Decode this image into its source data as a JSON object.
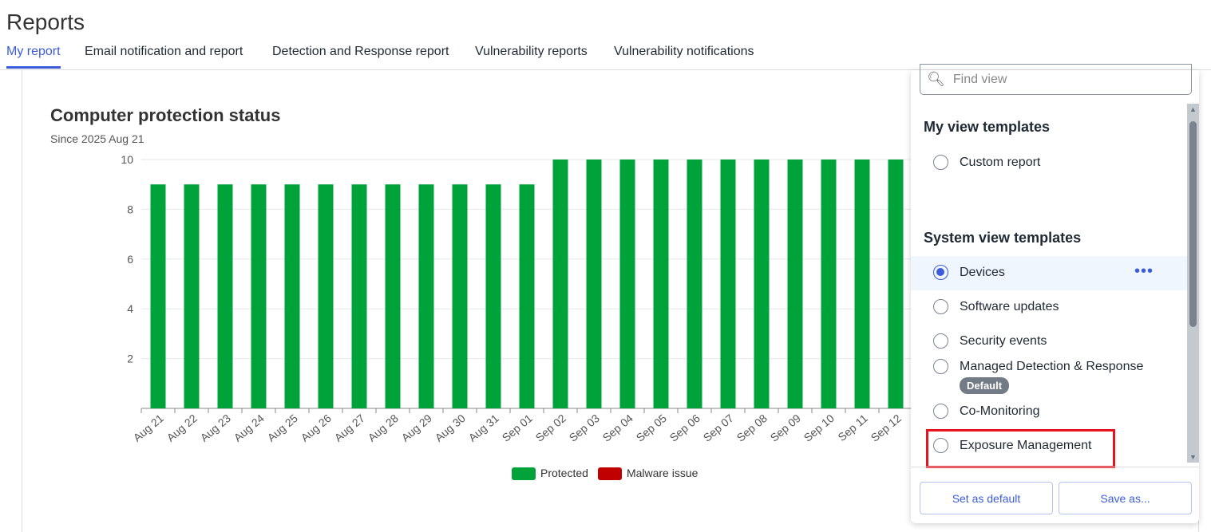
{
  "page": {
    "title": "Reports"
  },
  "tabs": [
    {
      "label": "My report",
      "active": true
    },
    {
      "label": "Email notification and report"
    },
    {
      "label": "Detection and Response report"
    },
    {
      "label": "Vulnerability reports"
    },
    {
      "label": "Vulnerability notifications"
    }
  ],
  "report": {
    "title": "Computer protection status",
    "subtitle": "Since 2025 Aug 21"
  },
  "chart_data": {
    "type": "bar",
    "stacked": true,
    "categories": [
      "Aug 21",
      "Aug 22",
      "Aug 23",
      "Aug 24",
      "Aug 25",
      "Aug 26",
      "Aug 27",
      "Aug 28",
      "Aug 29",
      "Aug 30",
      "Aug 31",
      "Sep 01",
      "Sep 02",
      "Sep 03",
      "Sep 04",
      "Sep 05",
      "Sep 06",
      "Sep 07",
      "Sep 08",
      "Sep 09",
      "Sep 10",
      "Sep 11",
      "Sep 12"
    ],
    "series": [
      {
        "name": "Protected",
        "color": "#00a33a",
        "values": [
          9,
          9,
          9,
          9,
          9,
          9,
          9,
          9,
          9,
          9,
          9,
          9,
          10,
          10,
          10,
          10,
          10,
          10,
          10,
          10,
          10,
          10,
          10
        ]
      },
      {
        "name": "Malware issue",
        "color": "#c00000",
        "values": [
          0,
          0,
          0,
          0,
          0,
          0,
          0,
          0,
          0,
          0,
          0,
          0,
          0,
          0,
          0,
          0,
          0,
          0,
          0,
          0,
          0,
          0,
          0
        ]
      }
    ],
    "ylim": [
      0,
      10
    ],
    "yticks": [
      "2",
      "4",
      "6",
      "8",
      "10"
    ],
    "grid": true,
    "legend": "bottom"
  },
  "panel": {
    "search_placeholder": "Find view",
    "my_section": "My view templates",
    "my_items": [
      {
        "label": "Custom report"
      }
    ],
    "system_section": "System view templates",
    "system_items": [
      {
        "label": "Devices",
        "selected": true
      },
      {
        "label": "Software updates"
      },
      {
        "label": "Security events"
      },
      {
        "label": "Managed Detection & Response",
        "badge": "Default"
      },
      {
        "label": "Co-Monitoring"
      },
      {
        "label": "Exposure Management",
        "highlighted": true
      }
    ],
    "more_icon": "ellipsis-icon",
    "set_default": "Set as default",
    "save_as": "Save as..."
  }
}
